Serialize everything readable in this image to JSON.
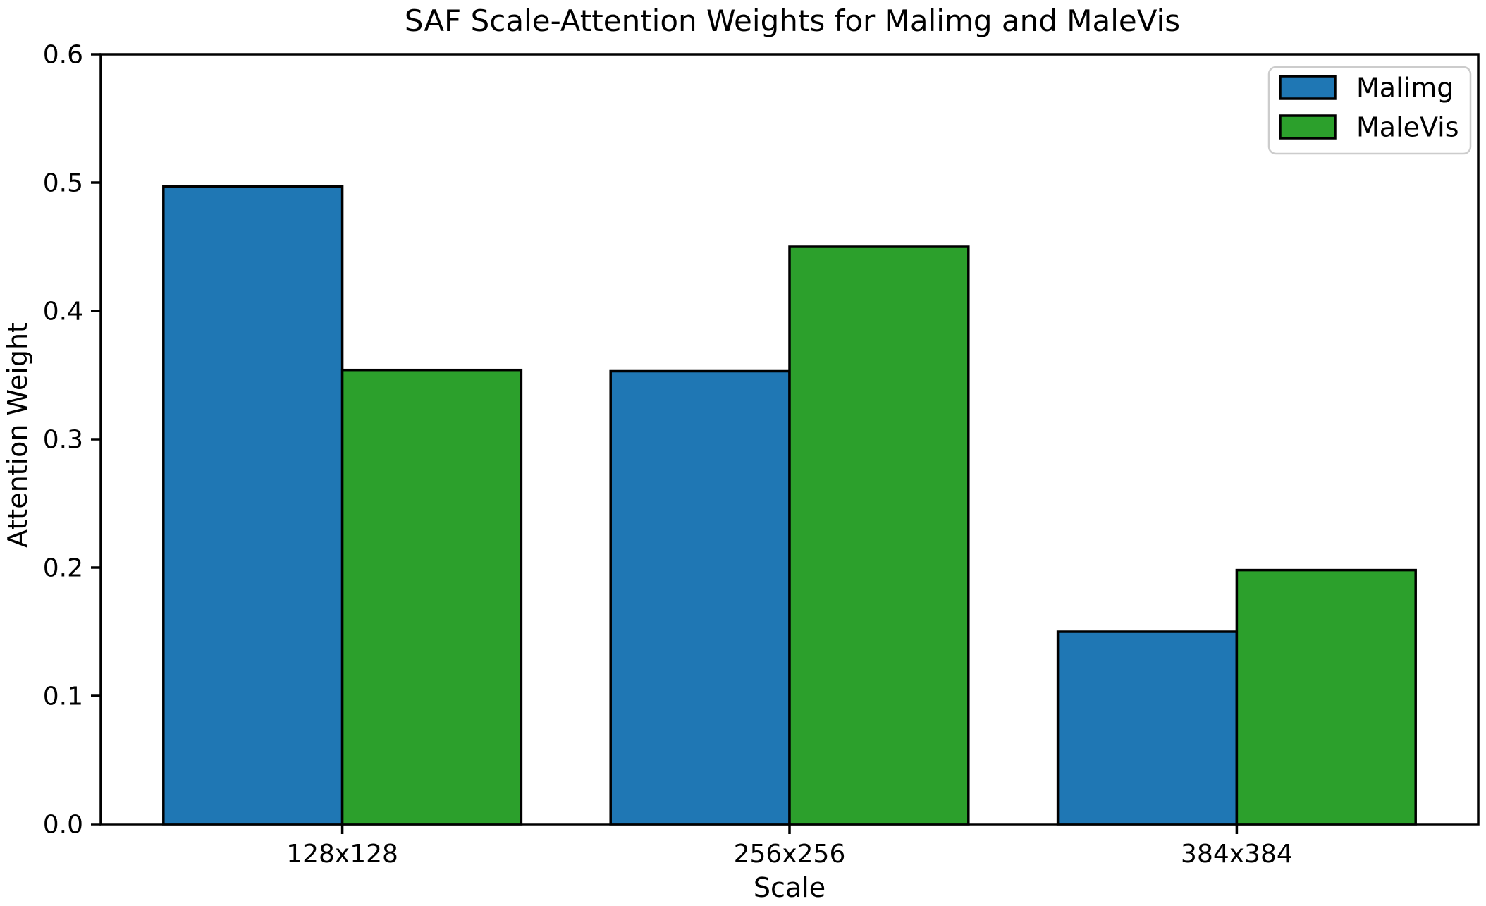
{
  "chart_data": {
    "type": "bar",
    "title": "SAF Scale-Attention Weights for Malimg and MaleVis",
    "xlabel": "Scale",
    "ylabel": "Attention Weight",
    "categories": [
      "128x128",
      "256x256",
      "384x384"
    ],
    "series": [
      {
        "name": "Malimg",
        "color": "#1f77b4",
        "values": [
          0.497,
          0.353,
          0.15
        ]
      },
      {
        "name": "MaleVis",
        "color": "#2ca02c",
        "values": [
          0.354,
          0.45,
          0.198
        ]
      }
    ],
    "ylim": [
      0.0,
      0.6
    ],
    "yticks": [
      0.0,
      0.1,
      0.2,
      0.3,
      0.4,
      0.5,
      0.6
    ],
    "ytick_labels": [
      "0.0",
      "0.1",
      "0.2",
      "0.3",
      "0.4",
      "0.5",
      "0.6"
    ],
    "grid": false,
    "legend_position": "upper right",
    "legend_entries": [
      "Malimg",
      "MaleVis"
    ],
    "bar_edge_color": "#000000",
    "axis_color": "#000000",
    "background_color": "#ffffff"
  }
}
